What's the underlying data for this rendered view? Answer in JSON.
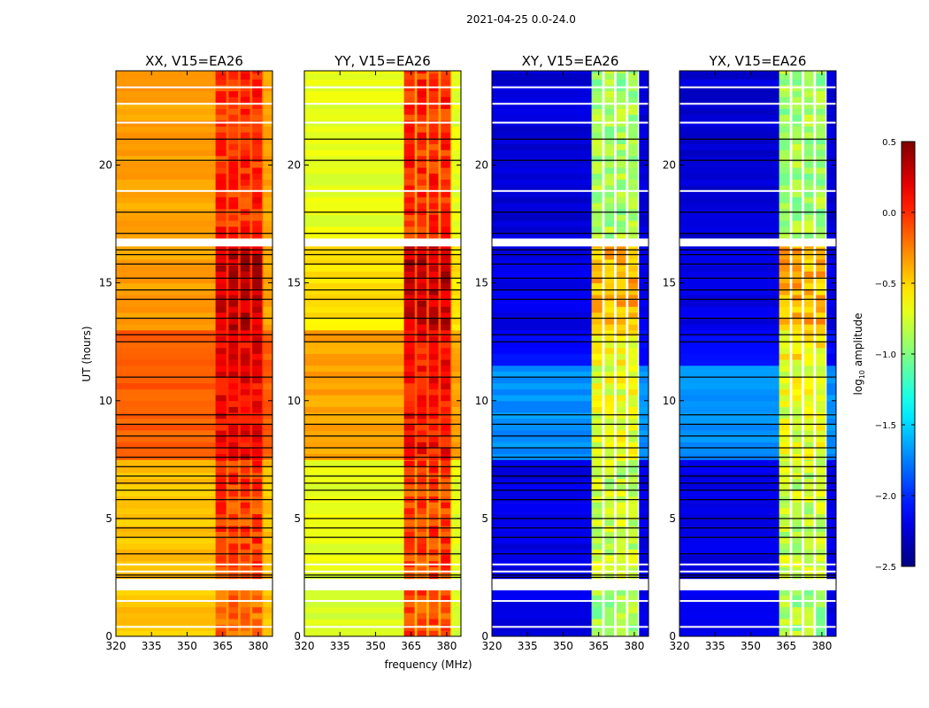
{
  "chart_data": {
    "type": "heatmap",
    "suptitle": "2021-04-25 0.0-24.0",
    "xlabel": "frequency (MHz)",
    "ylabel": "UT (hours)",
    "xlim": [
      320,
      386
    ],
    "ylim": [
      0,
      24
    ],
    "xticks": [
      "320",
      "335",
      "350",
      "365",
      "380"
    ],
    "xtick_values": [
      320,
      335,
      350,
      365,
      380
    ],
    "yticks": [
      "0",
      "5",
      "10",
      "15",
      "20"
    ],
    "ytick_values": [
      0,
      5,
      10,
      15,
      20
    ],
    "subbands_mhz": [
      [
        362,
        366.5
      ],
      [
        367.5,
        371.5
      ],
      [
        372.5,
        376.5
      ],
      [
        377.5,
        381.5
      ]
    ],
    "panels": [
      {
        "title": "XX, V15=EA26",
        "gap_mode": "dim",
        "bands": [
          [
            0,
            1.95,
            -0.45,
            -0.2
          ],
          [
            2.45,
            7.5,
            -0.45,
            -0.05
          ],
          [
            7.5,
            13,
            -0.15,
            0.15
          ],
          [
            13,
            16.55,
            -0.35,
            0.3
          ],
          [
            16.9,
            24,
            -0.35,
            0.0
          ]
        ]
      },
      {
        "title": "YY, V15=EA26",
        "gap_mode": "dim",
        "bands": [
          [
            0,
            1.95,
            -0.75,
            -0.1
          ],
          [
            2.45,
            7.5,
            -0.7,
            -0.05
          ],
          [
            7.5,
            13,
            -0.35,
            0.1
          ],
          [
            13,
            16.55,
            -0.55,
            0.3
          ],
          [
            16.9,
            24,
            -0.7,
            0.0
          ]
        ]
      },
      {
        "title": "XY, V15=EA26",
        "gap_mode": "white",
        "bands": [
          [
            0,
            1.95,
            -2.2,
            -0.9
          ],
          [
            2.45,
            7.5,
            -2.2,
            -0.8
          ],
          [
            7.5,
            11.5,
            -1.7,
            -0.7
          ],
          [
            11.5,
            13,
            -2.1,
            -0.6
          ],
          [
            13,
            16.55,
            -2.2,
            -0.4
          ],
          [
            16.9,
            24,
            -2.25,
            -0.9
          ]
        ]
      },
      {
        "title": "YX, V15=EA26",
        "gap_mode": "white",
        "bands": [
          [
            0,
            1.95,
            -2.2,
            -0.9
          ],
          [
            2.45,
            7.5,
            -2.2,
            -0.8
          ],
          [
            7.5,
            11.5,
            -1.7,
            -0.7
          ],
          [
            11.5,
            13,
            -2.1,
            -0.6
          ],
          [
            13,
            16.55,
            -2.2,
            -0.4
          ],
          [
            16.9,
            24,
            -2.25,
            -0.9
          ]
        ]
      }
    ],
    "flagged_white_hours": [
      0.4,
      1.5,
      2.75,
      3.05,
      18.9,
      21.8,
      22.6,
      23.3
    ],
    "flagged_black_hours": [
      2.5,
      2.6,
      3.5,
      4.2,
      4.6,
      5.0,
      5.8,
      6.2,
      6.5,
      6.8,
      7.2,
      7.6,
      8.0,
      8.5,
      9.0,
      9.4,
      11.0,
      12.5,
      12.8,
      13.5,
      14.3,
      14.7,
      15.2,
      15.8,
      16.2,
      16.4,
      17.1,
      18.0,
      20.2,
      21.1
    ],
    "colorbar": {
      "label": "log",
      "label_sub": "10",
      "label_rest": " amplitude",
      "cmap": "jet",
      "range": [
        -2.5,
        0.5
      ],
      "ticks": [
        "0.5",
        "0.0",
        "−0.5",
        "−1.0",
        "−1.5",
        "−2.0",
        "−2.5"
      ],
      "tick_values": [
        0.5,
        0.0,
        -0.5,
        -1.0,
        -1.5,
        -2.0,
        -2.5
      ]
    }
  }
}
